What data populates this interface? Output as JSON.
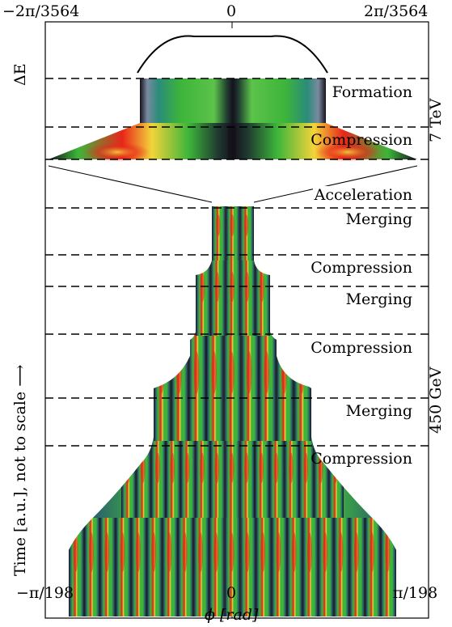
{
  "top_axis": {
    "left": "−2π/3564",
    "center": "0",
    "right": "2π/3564"
  },
  "bottom_axis": {
    "left": "−π/198",
    "center": "0",
    "right": "π/198",
    "label": "ϕ [rad]"
  },
  "y_top_label": "ΔE",
  "y_main_label": "Time [a.u.], not to scale ⟶",
  "energy_labels": {
    "upper": "7 TeV",
    "lower": "450 GeV"
  },
  "stages": [
    {
      "label": "Formation"
    },
    {
      "label": "Compression"
    },
    {
      "label": "Acceleration"
    },
    {
      "label": "Merging"
    },
    {
      "label": "Compression"
    },
    {
      "label": "Merging"
    },
    {
      "label": "Compression"
    },
    {
      "label": "Merging"
    },
    {
      "label": "Compression"
    }
  ],
  "colors": {
    "hot": "#e8261a",
    "warm": "#f2d43a",
    "mid": "#3db53a",
    "cool": "#2a8c7a",
    "dark": "#15121c"
  }
}
